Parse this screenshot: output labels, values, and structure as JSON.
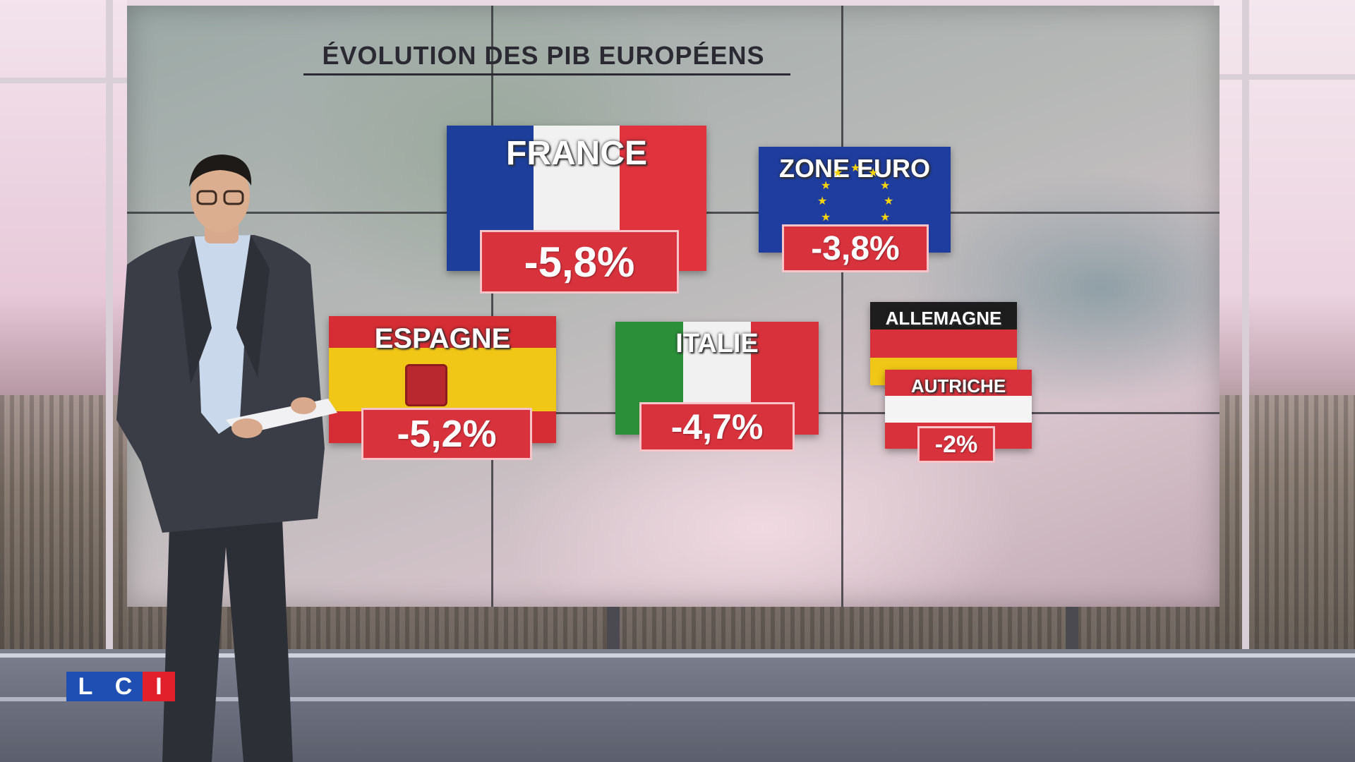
{
  "title": "ÉVOLUTION DES PIB EUROPÉENS",
  "cards": {
    "france": {
      "name": "FRANCE",
      "value": "-5,8%",
      "colors": [
        "#1d3f9b",
        "#f1f1f1",
        "#e0333d"
      ]
    },
    "zone_euro": {
      "name": "ZONE EURO",
      "value": "-3,8%",
      "colors": [
        "#1f3d9e",
        "#f5d20a"
      ]
    },
    "espagne": {
      "name": "ESPAGNE",
      "value": "-5,2%",
      "colors": [
        "#d62d34",
        "#f0c617",
        "#d62d34"
      ]
    },
    "italie": {
      "name": "ITALIE",
      "value": "-4,7%",
      "colors": [
        "#2b8f3a",
        "#f1f1f1",
        "#d8313b"
      ]
    },
    "allemagne": {
      "name": "ALLEMAGNE",
      "colors": [
        "#1d1d1d",
        "#d8313b",
        "#f0c617"
      ]
    },
    "autriche": {
      "name": "AUTRICHE",
      "value": "-2%",
      "colors": [
        "#d8313b",
        "#f4f4f4",
        "#d8313b"
      ]
    }
  },
  "logo": {
    "letters": [
      "L",
      "C",
      "I"
    ],
    "colors": [
      "#1f4fb3",
      "#1f4fb3",
      "#e2202c"
    ]
  }
}
